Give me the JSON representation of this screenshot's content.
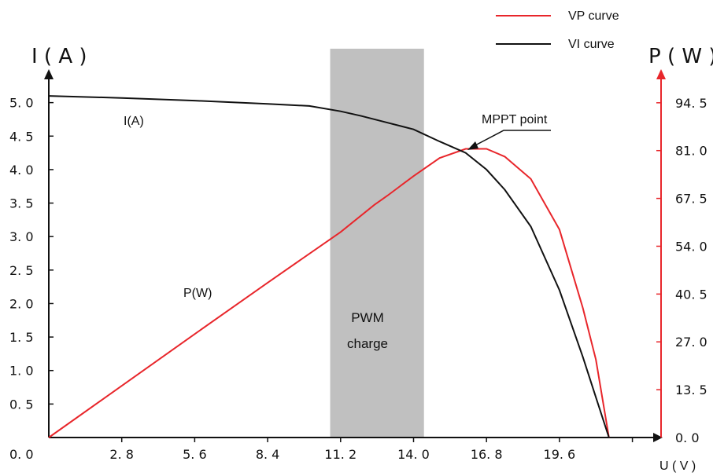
{
  "chart_data": {
    "type": "line",
    "x_ticks": [
      "2. 8",
      "5. 6",
      "8. 4",
      "11. 2",
      "14. 0",
      "16. 8",
      "19. 6"
    ],
    "x_tick_values": [
      2.8,
      5.6,
      8.4,
      11.2,
      14.0,
      16.8,
      19.6
    ],
    "origin_label": "0. 0",
    "xlim": [
      0,
      23.5
    ],
    "xlabel": "U ( V )",
    "left_axis": {
      "label": "I ( A )",
      "ticks": [
        "0. 5",
        "1. 0",
        "1. 5",
        "2. 0",
        "2. 5",
        "3. 0",
        "3. 5",
        "4. 0",
        "4. 5",
        "5. 0"
      ],
      "tick_values": [
        0.5,
        1.0,
        1.5,
        2.0,
        2.5,
        3.0,
        3.5,
        4.0,
        4.5,
        5.0
      ],
      "ylim": [
        0,
        5.5
      ],
      "color": "#111111"
    },
    "right_axis": {
      "label": "P ( W )",
      "ticks": [
        "0. 0",
        "13. 5",
        "27. 0",
        "40. 5",
        "54. 0",
        "67. 5",
        "81. 0",
        "94. 5"
      ],
      "tick_values": [
        0,
        13.5,
        27.0,
        40.5,
        54.0,
        67.5,
        81.0,
        94.5
      ],
      "ylim": [
        0,
        104
      ],
      "color": "#e8262b"
    },
    "series": [
      {
        "name": "VP curve",
        "axis": "right",
        "color": "#e8262b",
        "x": [
          0,
          2.8,
          5.6,
          8.4,
          11.2,
          12.5,
          13.0,
          14.0,
          15.0,
          16.0,
          16.8,
          17.5,
          18.5,
          19.6,
          20.5,
          21.0,
          21.5
        ],
        "y": [
          0,
          14.6,
          29.2,
          43.7,
          58.0,
          65.7,
          68.3,
          73.8,
          78.9,
          81.5,
          81.5,
          79.3,
          73.0,
          58.7,
          36.5,
          22.0,
          0
        ]
      },
      {
        "name": "VI curve",
        "axis": "left",
        "color": "#111111",
        "x": [
          0,
          2.8,
          5.6,
          8.4,
          10.0,
          11.2,
          12.0,
          13.0,
          14.0,
          15.0,
          16.0,
          16.8,
          17.5,
          18.5,
          19.6,
          20.5,
          21.0,
          21.5
        ],
        "y": [
          5.1,
          5.07,
          5.03,
          4.98,
          4.95,
          4.87,
          4.8,
          4.7,
          4.6,
          4.42,
          4.25,
          4.0,
          3.7,
          3.15,
          2.2,
          1.2,
          0.6,
          0
        ]
      }
    ],
    "legend": {
      "placement": "top-right",
      "items": [
        {
          "label": "VP curve",
          "color": "#e8262b"
        },
        {
          "label": "VI curve",
          "color": "#111111"
        }
      ]
    },
    "annotations": {
      "i_curve_label": "I(A)",
      "p_curve_label": "P(W)",
      "mppt": {
        "label": "MPPT point",
        "x": 16.0,
        "y_current": 4.25
      },
      "pwm_band": {
        "label_line1": "PWM",
        "label_line2": "charge",
        "x_start": 10.8,
        "x_end": 14.4,
        "color": "#c0c0c0"
      }
    }
  }
}
